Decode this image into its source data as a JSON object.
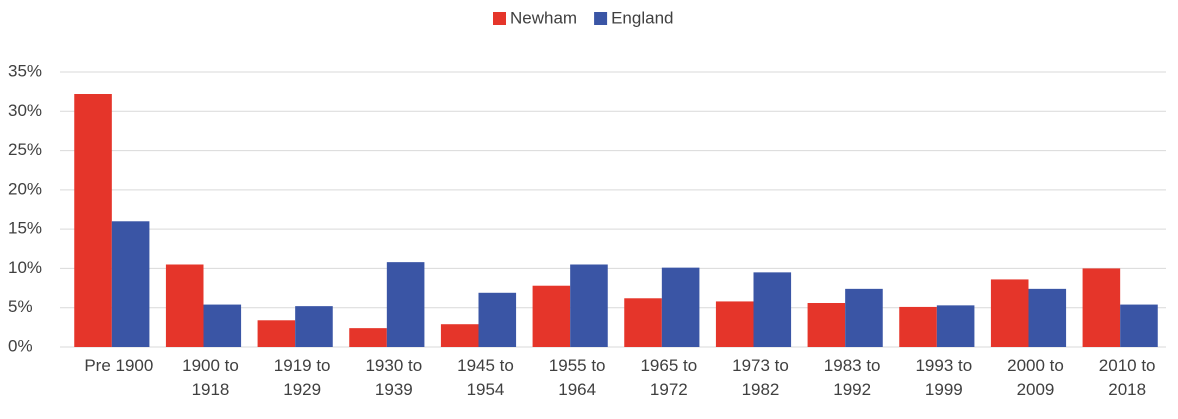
{
  "chart_data": {
    "type": "bar",
    "categories": [
      "Pre 1900",
      "1900 to 1918",
      "1919 to 1929",
      "1930 to 1939",
      "1945 to 1954",
      "1955 to 1964",
      "1965 to 1972",
      "1973 to 1982",
      "1983 to 1992",
      "1993 to 1999",
      "2000 to 2009",
      "2010 to 2018"
    ],
    "series": [
      {
        "name": "Newham",
        "color": "#e5352a",
        "values": [
          32.2,
          10.5,
          3.4,
          2.4,
          2.9,
          7.8,
          6.2,
          5.8,
          5.6,
          5.1,
          8.6,
          10.0
        ]
      },
      {
        "name": "England",
        "color": "#3a55a5",
        "values": [
          16.0,
          5.4,
          5.2,
          10.8,
          6.9,
          10.5,
          10.1,
          9.5,
          7.4,
          5.3,
          7.4,
          5.4
        ]
      }
    ],
    "ylim": [
      0,
      35
    ],
    "yticks": [
      {
        "value": 0,
        "label": "0%"
      },
      {
        "value": 5,
        "label": "5%"
      },
      {
        "value": 10,
        "label": "10%"
      },
      {
        "value": 15,
        "label": "15%"
      },
      {
        "value": 20,
        "label": "20%"
      },
      {
        "value": 25,
        "label": "25%"
      },
      {
        "value": 30,
        "label": "30%"
      },
      {
        "value": 35,
        "label": "35%"
      }
    ],
    "grid": true,
    "legend": "top"
  }
}
